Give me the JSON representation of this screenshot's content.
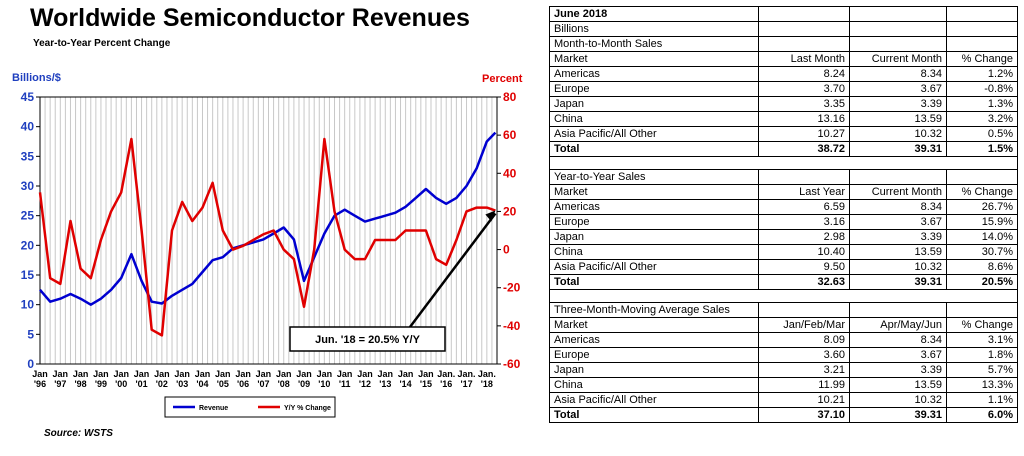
{
  "chart_data": {
    "type": "line",
    "title": "Worldwide Semiconductor Revenues",
    "subtitle": "Year-to-Year Percent Change",
    "source": "Source: WSTS",
    "ylabel_left": "Billions/$",
    "ylabel_right": "Percent",
    "left_ticks": [
      "0",
      "5",
      "10",
      "15",
      "20",
      "25",
      "30",
      "35",
      "40",
      "45"
    ],
    "right_ticks": [
      "-60",
      "-40",
      "-20",
      "0",
      "20",
      "40",
      "60",
      "80"
    ],
    "ylim_left": [
      0,
      45
    ],
    "ylim_right": [
      -60,
      80
    ],
    "x_tick_labels": [
      {
        "top": "Jan",
        "bottom": "'96"
      },
      {
        "top": "Jan",
        "bottom": "'97"
      },
      {
        "top": "Jan",
        "bottom": "'98"
      },
      {
        "top": "Jan",
        "bottom": "'99"
      },
      {
        "top": "Jan",
        "bottom": "'00"
      },
      {
        "top": "Jan",
        "bottom": "'01"
      },
      {
        "top": "Jan",
        "bottom": "'02"
      },
      {
        "top": "Jan",
        "bottom": "'03"
      },
      {
        "top": "Jan",
        "bottom": "'04"
      },
      {
        "top": "Jan",
        "bottom": "'05"
      },
      {
        "top": "Jan",
        "bottom": "'06"
      },
      {
        "top": "Jan",
        "bottom": "'07"
      },
      {
        "top": "Jan",
        "bottom": "'08"
      },
      {
        "top": "Jan",
        "bottom": "'09"
      },
      {
        "top": "Jan",
        "bottom": "'10"
      },
      {
        "top": "Jan",
        "bottom": "'11"
      },
      {
        "top": "Jan",
        "bottom": "'12"
      },
      {
        "top": "Jan",
        "bottom": "'13"
      },
      {
        "top": "Jan",
        "bottom": "'14"
      },
      {
        "top": "Jan",
        "bottom": "'15"
      },
      {
        "top": "Jan.",
        "bottom": "'16"
      },
      {
        "top": "Jan.",
        "bottom": "'17"
      },
      {
        "top": "Jan.",
        "bottom": "'18"
      }
    ],
    "x": [
      1996.0,
      1996.5,
      1997.0,
      1997.5,
      1998.0,
      1998.5,
      1999.0,
      1999.5,
      2000.0,
      2000.5,
      2001.0,
      2001.5,
      2002.0,
      2002.5,
      2003.0,
      2003.5,
      2004.0,
      2004.5,
      2005.0,
      2005.5,
      2006.0,
      2006.5,
      2007.0,
      2007.5,
      2008.0,
      2008.5,
      2009.0,
      2009.5,
      2010.0,
      2010.5,
      2011.0,
      2011.5,
      2012.0,
      2012.5,
      2013.0,
      2013.5,
      2014.0,
      2014.5,
      2015.0,
      2015.5,
      2016.0,
      2016.5,
      2017.0,
      2017.5,
      2018.0,
      2018.42
    ],
    "series": [
      {
        "name": "Revenue",
        "axis": "left",
        "color": "#0000d0",
        "values": [
          12.5,
          10.5,
          11.0,
          11.8,
          11.0,
          10.0,
          11.0,
          12.5,
          14.5,
          18.5,
          14.0,
          10.5,
          10.2,
          11.5,
          12.5,
          13.5,
          15.5,
          17.5,
          18.0,
          19.5,
          20.0,
          20.5,
          21.0,
          22.0,
          23.0,
          21.0,
          14.0,
          18.0,
          22.0,
          25.0,
          26.0,
          25.0,
          24.0,
          24.5,
          25.0,
          25.5,
          26.5,
          28.0,
          29.5,
          28.0,
          27.0,
          28.0,
          30.0,
          33.0,
          37.5,
          39.0
        ]
      },
      {
        "name": "Y/Y % Change",
        "axis": "right",
        "color": "#e00000",
        "values": [
          30,
          -15,
          -18,
          15,
          -10,
          -15,
          5,
          20,
          30,
          58,
          10,
          -42,
          -45,
          10,
          25,
          15,
          22,
          35,
          10,
          0,
          2,
          5,
          8,
          10,
          0,
          -5,
          -30,
          0,
          58,
          20,
          0,
          -5,
          -5,
          5,
          5,
          5,
          10,
          10,
          10,
          -5,
          -8,
          5,
          20,
          22,
          22,
          20.5
        ]
      }
    ],
    "legend": {
      "placement": "bottom",
      "entries": [
        "Revenue",
        "Y/Y % Change"
      ]
    },
    "annotation": {
      "text": "Jun. '18 = 20.5% Y/Y",
      "x": 2018.42,
      "y": 20.5,
      "axis": "right"
    },
    "grid": {
      "vertical": true,
      "horizontal": false
    }
  },
  "table": {
    "header": "June 2018",
    "unit": "Billions",
    "sections": [
      {
        "title": "Month-to-Month Sales",
        "columns": [
          "Market",
          "Last Month",
          "Current Month",
          "% Change"
        ],
        "rows": [
          [
            "Americas",
            "8.24",
            "8.34",
            "1.2%"
          ],
          [
            "Europe",
            "3.70",
            "3.67",
            "-0.8%"
          ],
          [
            "Japan",
            "3.35",
            "3.39",
            "1.3%"
          ],
          [
            "China",
            "13.16",
            "13.59",
            "3.2%"
          ],
          [
            "Asia Pacific/All Other",
            "10.27",
            "10.32",
            "0.5%"
          ]
        ],
        "total": [
          "Total",
          "38.72",
          "39.31",
          "1.5%"
        ]
      },
      {
        "title": "Year-to-Year Sales",
        "columns": [
          "Market",
          "Last Year",
          "Current Month",
          "% Change"
        ],
        "rows": [
          [
            "Americas",
            "6.59",
            "8.34",
            "26.7%"
          ],
          [
            "Europe",
            "3.16",
            "3.67",
            "15.9%"
          ],
          [
            "Japan",
            "2.98",
            "3.39",
            "14.0%"
          ],
          [
            "China",
            "10.40",
            "13.59",
            "30.7%"
          ],
          [
            "Asia Pacific/All Other",
            "9.50",
            "10.32",
            "8.6%"
          ]
        ],
        "total": [
          "Total",
          "32.63",
          "39.31",
          "20.5%"
        ]
      },
      {
        "title": "Three-Month-Moving Average Sales",
        "columns": [
          "Market",
          "Jan/Feb/Mar",
          "Apr/May/Jun",
          "% Change"
        ],
        "rows": [
          [
            "Americas",
            "8.09",
            "8.34",
            "3.1%"
          ],
          [
            "Europe",
            "3.60",
            "3.67",
            "1.8%"
          ],
          [
            "Japan",
            "3.21",
            "3.39",
            "5.7%"
          ],
          [
            "China",
            "11.99",
            "13.59",
            "13.3%"
          ],
          [
            "Asia Pacific/All Other",
            "10.21",
            "10.32",
            "1.1%"
          ]
        ],
        "total": [
          "Total",
          "37.10",
          "39.31",
          "6.0%"
        ]
      }
    ]
  }
}
